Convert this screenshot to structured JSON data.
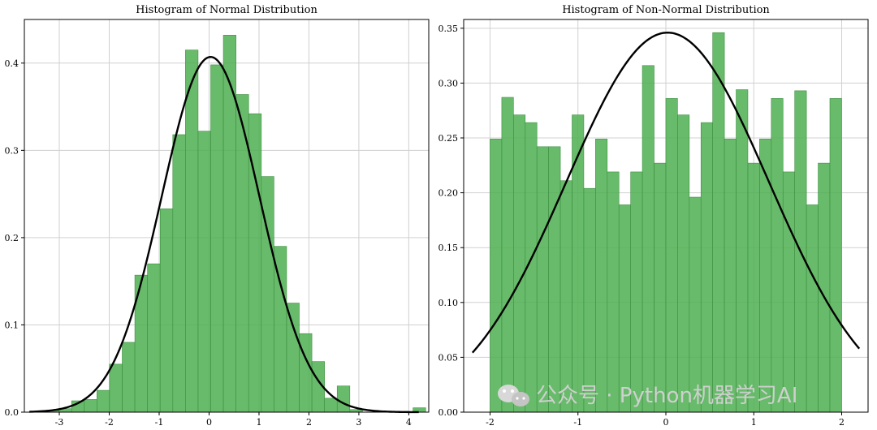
{
  "chart_data": [
    {
      "type": "bar",
      "title": "Histogram of Normal Distribution",
      "xlim": [
        -3.7,
        4.4
      ],
      "ylim": [
        0,
        0.45
      ],
      "xticks": [
        -3,
        -2,
        -1,
        0,
        1,
        2,
        3,
        4
      ],
      "xtick_labels": [
        "-3",
        "-2",
        "-1",
        "0",
        "1",
        "2",
        "3",
        "4"
      ],
      "yticks": [
        0.0,
        0.1,
        0.2,
        0.3,
        0.4
      ],
      "ytick_labels": [
        "0.0",
        "0.1",
        "0.2",
        "0.3",
        "0.4"
      ],
      "grid": true,
      "bin_start": -3.26,
      "bin_width": 0.2533,
      "values": [
        0.002,
        0.004,
        0.013,
        0.0145,
        0.025,
        0.055,
        0.08,
        0.157,
        0.17,
        0.233,
        0.318,
        0.415,
        0.322,
        0.398,
        0.432,
        0.364,
        0.342,
        0.27,
        0.19,
        0.125,
        0.09,
        0.058,
        0.016,
        0.03,
        0.003,
        0.0,
        0.0,
        0.0,
        0.0,
        0.005
      ],
      "pdf_curve": {
        "mean": 0.03,
        "std": 0.98,
        "x_range": [
          -3.6,
          4.2
        ]
      }
    },
    {
      "type": "bar",
      "title": "Histogram of Non-Normal Distribution",
      "xlim": [
        -2.3,
        2.3
      ],
      "ylim": [
        0,
        0.358
      ],
      "xticks": [
        -2,
        -1,
        0,
        1,
        2
      ],
      "xtick_labels": [
        "-2",
        "-1",
        "0",
        "1",
        "2"
      ],
      "yticks": [
        0.0,
        0.05,
        0.1,
        0.15,
        0.2,
        0.25,
        0.3,
        0.35
      ],
      "ytick_labels": [
        "0.00",
        "0.05",
        "0.10",
        "0.15",
        "0.20",
        "0.25",
        "0.30",
        "0.35"
      ],
      "grid": true,
      "bin_start": -2.0,
      "bin_width": 0.1333,
      "values": [
        0.249,
        0.287,
        0.271,
        0.264,
        0.242,
        0.242,
        0.211,
        0.271,
        0.204,
        0.249,
        0.219,
        0.189,
        0.219,
        0.316,
        0.227,
        0.286,
        0.271,
        0.196,
        0.264,
        0.346,
        0.249,
        0.294,
        0.227,
        0.249,
        0.286,
        0.219,
        0.293,
        0.189,
        0.227,
        0.286
      ],
      "pdf_curve": {
        "mean": 0.02,
        "std": 1.153,
        "x_range": [
          -2.2,
          2.2
        ]
      }
    }
  ],
  "watermark": {
    "text": "公众号 · Python机器学习AI",
    "icon": "wechat-icon",
    "color": "#cfcfcf"
  }
}
